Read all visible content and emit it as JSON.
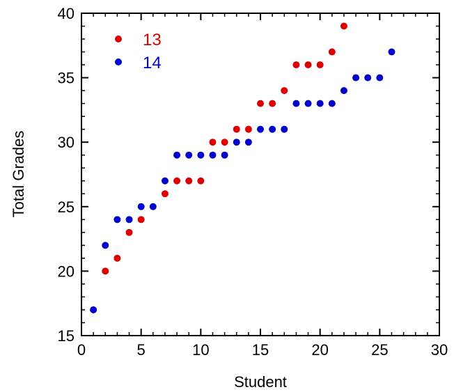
{
  "chart_data": {
    "type": "scatter",
    "xlabel": "Student",
    "ylabel": "Total Grades",
    "xlim": [
      0,
      30
    ],
    "ylim": [
      15,
      40
    ],
    "xticks": [
      0,
      5,
      10,
      15,
      20,
      25,
      30
    ],
    "yticks": [
      15,
      20,
      25,
      30,
      35,
      40
    ],
    "grid": false,
    "legend": "top-left",
    "series": [
      {
        "name": "13",
        "color": "#dd0000",
        "points": [
          [
            2,
            20
          ],
          [
            3,
            21
          ],
          [
            4,
            23
          ],
          [
            5,
            24
          ],
          [
            7,
            26
          ],
          [
            8,
            27
          ],
          [
            9,
            27
          ],
          [
            10,
            27
          ],
          [
            11,
            30
          ],
          [
            12,
            30
          ],
          [
            13,
            31
          ],
          [
            14,
            31
          ],
          [
            15,
            33
          ],
          [
            16,
            33
          ],
          [
            17,
            34
          ],
          [
            18,
            36
          ],
          [
            19,
            36
          ],
          [
            20,
            36
          ],
          [
            21,
            37
          ],
          [
            22,
            39
          ]
        ]
      },
      {
        "name": "14",
        "color": "#0000cc",
        "points": [
          [
            1,
            17
          ],
          [
            2,
            22
          ],
          [
            3,
            24
          ],
          [
            4,
            24
          ],
          [
            5,
            25
          ],
          [
            6,
            25
          ],
          [
            7,
            27
          ],
          [
            8,
            29
          ],
          [
            9,
            29
          ],
          [
            10,
            29
          ],
          [
            11,
            29
          ],
          [
            12,
            29
          ],
          [
            13,
            30
          ],
          [
            14,
            30
          ],
          [
            15,
            31
          ],
          [
            16,
            31
          ],
          [
            17,
            31
          ],
          [
            18,
            33
          ],
          [
            19,
            33
          ],
          [
            20,
            33
          ],
          [
            21,
            33
          ],
          [
            22,
            34
          ],
          [
            23,
            35
          ],
          [
            24,
            35
          ],
          [
            25,
            35
          ],
          [
            26,
            37
          ]
        ]
      }
    ]
  }
}
